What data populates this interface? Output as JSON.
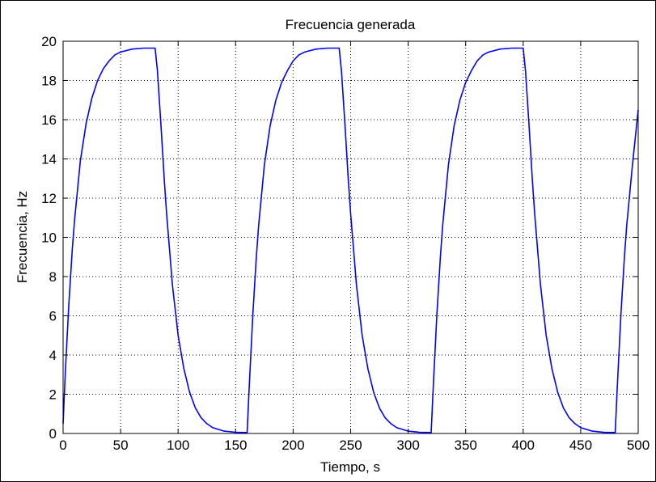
{
  "chart_data": {
    "type": "line",
    "title": "Frecuencia generada",
    "xlabel": "Tiempo, s",
    "ylabel": "Frecuencia, Hz",
    "xlim": [
      0,
      500
    ],
    "ylim": [
      0,
      20
    ],
    "xticks": [
      0,
      50,
      100,
      150,
      200,
      250,
      300,
      350,
      400,
      450,
      500
    ],
    "yticks": [
      0,
      2,
      4,
      6,
      8,
      10,
      12,
      14,
      16,
      18,
      20
    ],
    "grid": true,
    "grid_style": "dotted",
    "series": [
      {
        "color": "#0000ff",
        "x": [
          0,
          2,
          5,
          8,
          10,
          15,
          20,
          25,
          30,
          35,
          40,
          45,
          50,
          60,
          70,
          80,
          82,
          85,
          88,
          90,
          95,
          100,
          105,
          110,
          115,
          120,
          125,
          130,
          140,
          150,
          160,
          162,
          165,
          168,
          170,
          175,
          180,
          185,
          190,
          195,
          200,
          205,
          210,
          220,
          230,
          240,
          242,
          245,
          248,
          250,
          255,
          260,
          265,
          270,
          275,
          280,
          285,
          290,
          300,
          310,
          320,
          322,
          325,
          328,
          330,
          335,
          340,
          345,
          350,
          355,
          360,
          365,
          370,
          380,
          390,
          400,
          402,
          405,
          408,
          410,
          415,
          420,
          425,
          430,
          435,
          440,
          445,
          450,
          460,
          470,
          480,
          482,
          485,
          488,
          490,
          495,
          500
        ],
        "y": [
          0.5,
          3.2,
          6.6,
          9.4,
          10.9,
          13.9,
          15.8,
          17.1,
          18.0,
          18.6,
          19.0,
          19.3,
          19.45,
          19.6,
          19.65,
          19.65,
          18.5,
          15.8,
          12.9,
          11.2,
          7.6,
          5.0,
          3.3,
          2.1,
          1.3,
          0.8,
          0.5,
          0.3,
          0.12,
          0.06,
          0.05,
          2.6,
          6.1,
          9.0,
          10.6,
          13.7,
          15.7,
          17.0,
          17.9,
          18.5,
          19.0,
          19.3,
          19.45,
          19.6,
          19.65,
          19.65,
          18.5,
          15.8,
          12.9,
          11.2,
          7.6,
          5.0,
          3.3,
          2.1,
          1.3,
          0.8,
          0.5,
          0.3,
          0.12,
          0.06,
          0.05,
          2.6,
          6.1,
          9.0,
          10.6,
          13.7,
          15.7,
          17.0,
          17.9,
          18.5,
          19.0,
          19.3,
          19.45,
          19.6,
          19.65,
          19.65,
          18.5,
          15.8,
          12.9,
          11.2,
          7.6,
          5.0,
          3.3,
          2.1,
          1.3,
          0.8,
          0.5,
          0.3,
          0.12,
          0.06,
          0.05,
          2.6,
          6.1,
          9.0,
          10.6,
          13.7,
          16.5
        ]
      }
    ]
  }
}
